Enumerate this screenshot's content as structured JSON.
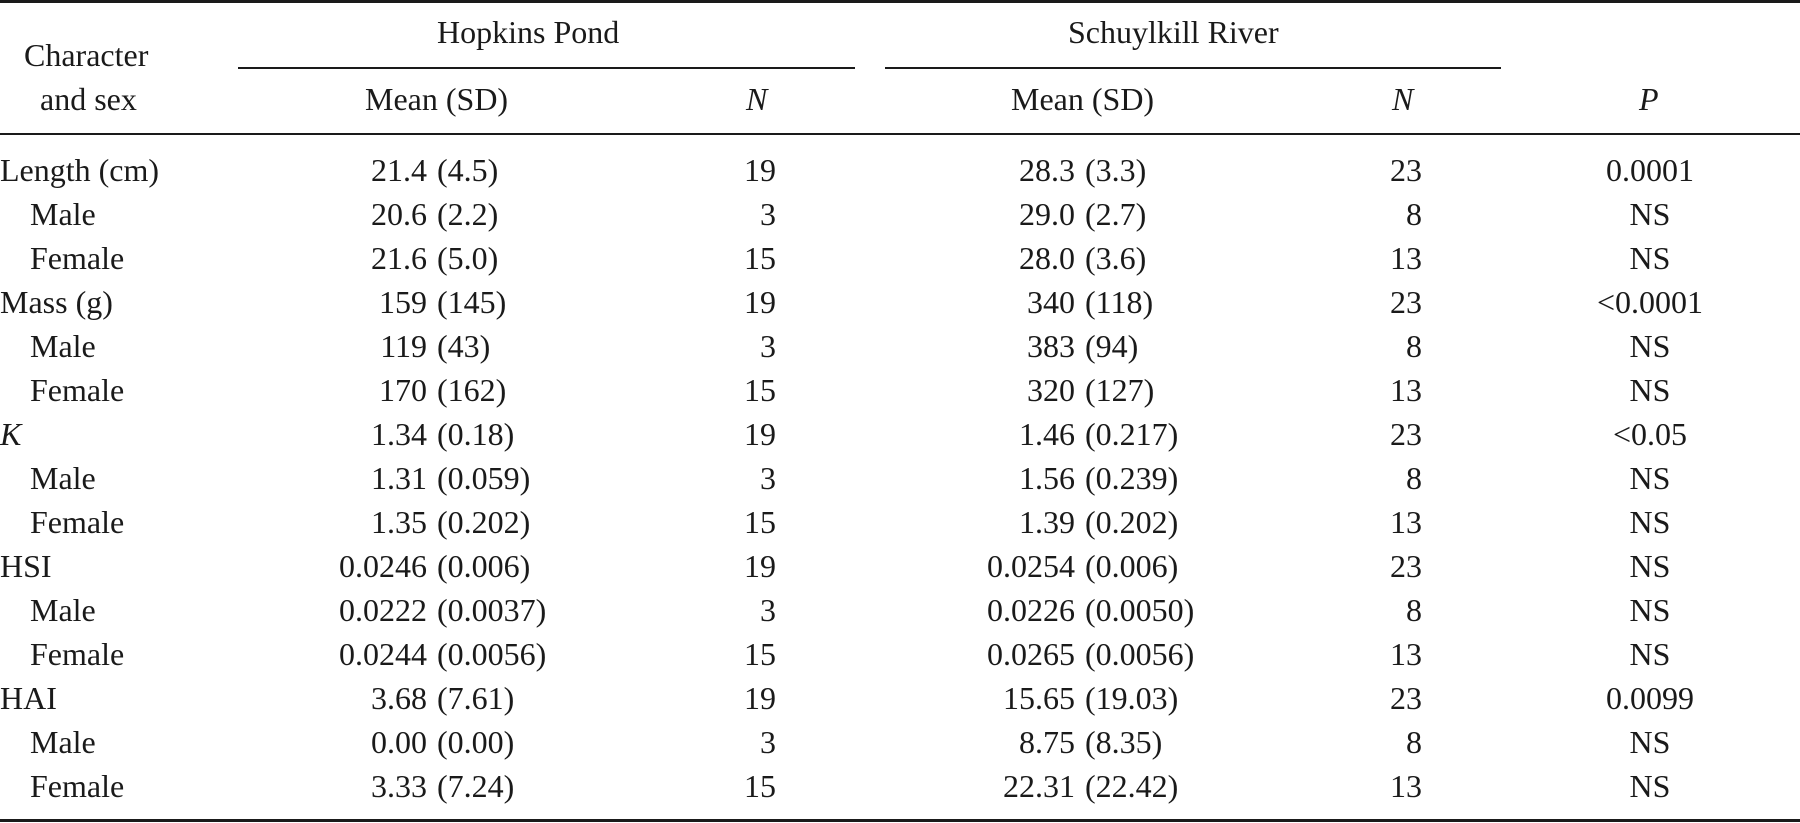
{
  "header": {
    "col_char": [
      "Character",
      "and sex"
    ],
    "group1": "Hopkins Pond",
    "group2": "Schuylkill River",
    "mean_sd": "Mean (SD)",
    "n": "N",
    "p": "P"
  },
  "rows": [
    {
      "label": "Length (cm)",
      "italic": false,
      "indent": false,
      "hp_mean": "21.4",
      "hp_sd": "(4.5)",
      "hp_n": "19",
      "sr_mean": "28.3",
      "sr_sd": "(3.3)",
      "sr_n": "23",
      "p": "0.0001"
    },
    {
      "label": "Male",
      "italic": false,
      "indent": true,
      "hp_mean": "20.6",
      "hp_sd": "(2.2)",
      "hp_n": "3",
      "sr_mean": "29.0",
      "sr_sd": "(2.7)",
      "sr_n": "8",
      "p": "NS"
    },
    {
      "label": "Female",
      "italic": false,
      "indent": true,
      "hp_mean": "21.6",
      "hp_sd": "(5.0)",
      "hp_n": "15",
      "sr_mean": "28.0",
      "sr_sd": "(3.6)",
      "sr_n": "13",
      "p": "NS"
    },
    {
      "label": "Mass (g)",
      "italic": false,
      "indent": false,
      "hp_mean": "159",
      "hp_sd": "(145)",
      "hp_n": "19",
      "sr_mean": "340",
      "sr_sd": "(118)",
      "sr_n": "23",
      "p": "<0.0001"
    },
    {
      "label": "Male",
      "italic": false,
      "indent": true,
      "hp_mean": "119",
      "hp_sd": "(43)",
      "hp_n": "3",
      "sr_mean": "383",
      "sr_sd": "(94)",
      "sr_n": "8",
      "p": "NS"
    },
    {
      "label": "Female",
      "italic": false,
      "indent": true,
      "hp_mean": "170",
      "hp_sd": "(162)",
      "hp_n": "15",
      "sr_mean": "320",
      "sr_sd": "(127)",
      "sr_n": "13",
      "p": "NS"
    },
    {
      "label": "K",
      "italic": true,
      "indent": false,
      "hp_mean": "1.34",
      "hp_sd": "(0.18)",
      "hp_n": "19",
      "sr_mean": "1.46",
      "sr_sd": "(0.217)",
      "sr_n": "23",
      "p": "<0.05"
    },
    {
      "label": "Male",
      "italic": false,
      "indent": true,
      "hp_mean": "1.31",
      "hp_sd": "(0.059)",
      "hp_n": "3",
      "sr_mean": "1.56",
      "sr_sd": "(0.239)",
      "sr_n": "8",
      "p": "NS"
    },
    {
      "label": "Female",
      "italic": false,
      "indent": true,
      "hp_mean": "1.35",
      "hp_sd": "(0.202)",
      "hp_n": "15",
      "sr_mean": "1.39",
      "sr_sd": "(0.202)",
      "sr_n": "13",
      "p": "NS"
    },
    {
      "label": "HSI",
      "italic": false,
      "indent": false,
      "hp_mean": "0.0246",
      "hp_sd": "(0.006)",
      "hp_n": "19",
      "sr_mean": "0.0254",
      "sr_sd": "(0.006)",
      "sr_n": "23",
      "p": "NS"
    },
    {
      "label": "Male",
      "italic": false,
      "indent": true,
      "hp_mean": "0.0222",
      "hp_sd": "(0.0037)",
      "hp_n": "3",
      "sr_mean": "0.0226",
      "sr_sd": "(0.0050)",
      "sr_n": "8",
      "p": "NS"
    },
    {
      "label": "Female",
      "italic": false,
      "indent": true,
      "hp_mean": "0.0244",
      "hp_sd": "(0.0056)",
      "hp_n": "15",
      "sr_mean": "0.0265",
      "sr_sd": "(0.0056)",
      "sr_n": "13",
      "p": "NS"
    },
    {
      "label": "HAI",
      "italic": false,
      "indent": false,
      "hp_mean": "3.68",
      "hp_sd": "(7.61)",
      "hp_n": "19",
      "sr_mean": "15.65",
      "sr_sd": "(19.03)",
      "sr_n": "23",
      "p": "0.0099"
    },
    {
      "label": "Male",
      "italic": false,
      "indent": true,
      "hp_mean": "0.00",
      "hp_sd": "(0.00)",
      "hp_n": "3",
      "sr_mean": "8.75",
      "sr_sd": "(8.35)",
      "sr_n": "8",
      "p": "NS"
    },
    {
      "label": "Female",
      "italic": false,
      "indent": true,
      "hp_mean": "3.33",
      "hp_sd": "(7.24)",
      "hp_n": "15",
      "sr_mean": "22.31",
      "sr_sd": "(22.42)",
      "sr_n": "13",
      "p": "NS"
    }
  ]
}
